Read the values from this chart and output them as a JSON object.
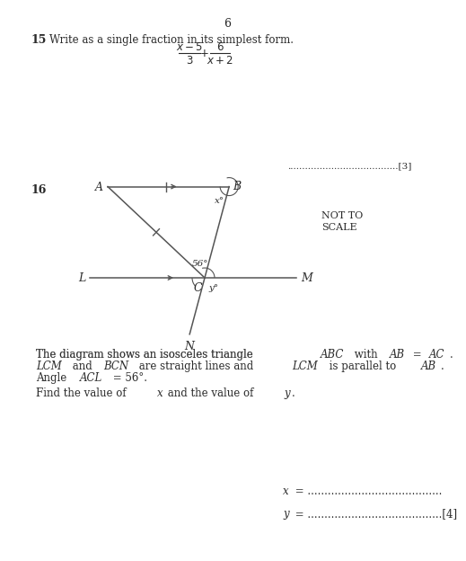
{
  "page_number": "6",
  "bg_color": "#ffffff",
  "text_color": "#2a2a2a",
  "q15_number": "15",
  "q15_instruction": "Write as a single fraction in its simplest form.",
  "q15_marks": "[3]",
  "q16_number": "16",
  "not_to_scale_1": "NOT TO",
  "not_to_scale_2": "SCALE",
  "angle_56": "56°",
  "angle_x": "x°",
  "angle_y": "y°",
  "label_A": "A",
  "label_B": "B",
  "label_C": "C",
  "label_L": "L",
  "label_M": "M",
  "label_N": "N",
  "q16_desc_line1": "The diagram shows an isosceles triangle ",
  "q16_desc_ABC": "ABC",
  "q16_desc_with": " with ",
  "q16_desc_AB": "AB",
  "q16_desc_eq": " = ",
  "q16_desc_AC": "AC",
  "q16_desc_line1_end": ".",
  "q16_desc_line2a": "LCM",
  "q16_desc_line2b": " and ",
  "q16_desc_line2c": "BCN",
  "q16_desc_line2d": " are straight lines and ",
  "q16_desc_line2e": "LCM",
  "q16_desc_line2f": " is parallel to ",
  "q16_desc_line2g": "AB",
  "q16_desc_line2h": ".",
  "q16_desc_line3a": "Angle ",
  "q16_desc_line3b": "ACL",
  "q16_desc_line3c": " = 56°.",
  "q16_instruction_a": "Find the value of ",
  "q16_instruction_b": "x",
  "q16_instruction_c": " and the value of ",
  "q16_instruction_d": "y",
  "q16_instruction_e": ".",
  "x_label": "x",
  "y_label": "y",
  "marks_16": "[4]",
  "dots_short": "......................................",
  "dots_long": "........................................"
}
